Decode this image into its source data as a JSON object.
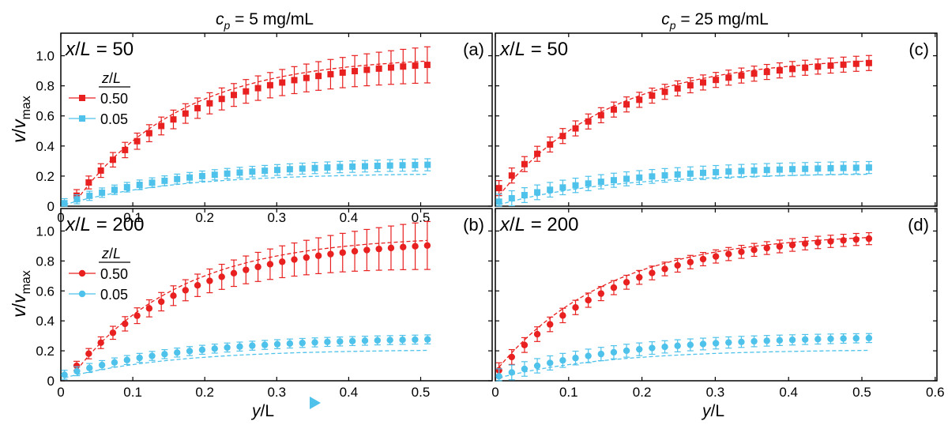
{
  "colors": {
    "red": "#e8201f",
    "blue": "#4ec2ea",
    "axis": "#000000"
  },
  "column_titles": [
    {
      "symbol": "c",
      "subscript": "p",
      "text": " = 5 mg/mL"
    },
    {
      "symbol": "c",
      "subscript": "p",
      "text": " = 25 mg/mL"
    }
  ],
  "y_axis_label": {
    "symbol": "v",
    "separator": "/",
    "symbol2": "v",
    "subscript": "max"
  },
  "x_axis_label": {
    "symbol": "y",
    "text": "/L"
  },
  "legend_title": "z/L",
  "chart_data": [
    {
      "panel": "(a)",
      "type": "scatter",
      "title": "x/L = 50",
      "marker": "square",
      "xlim": [
        0,
        0.6
      ],
      "ylim": [
        0,
        1.15
      ],
      "yticks": [
        0,
        0.2,
        0.4,
        0.6,
        0.8,
        1.0
      ],
      "yticklabels": [
        "0",
        "0.2",
        "0.4",
        "0.6",
        "0.8",
        "1.0"
      ],
      "xticks": [
        0,
        0.1,
        0.2,
        0.3,
        0.4,
        0.5
      ],
      "xticklabels": [
        "0",
        "0.1",
        "0.2",
        "0.3",
        "0.4",
        "0.5"
      ],
      "legend": [
        {
          "label": "0.50",
          "color": "red"
        },
        {
          "label": "0.05",
          "color": "blue"
        }
      ],
      "series": [
        {
          "name": "z/L = 0.50",
          "color": "red",
          "start": 0.022,
          "step": 0.0168,
          "count": 30,
          "ends": [
            0.07,
            0.99
          ],
          "err": [
            0.04,
            0.12
          ],
          "fit": [
            0.04,
            1.0
          ]
        },
        {
          "name": "z/L = 0.05",
          "color": "blue",
          "start": 0.005,
          "step": 0.0174,
          "count": 30,
          "ends": [
            0.02,
            0.29
          ],
          "err": [
            0.03,
            0.04
          ],
          "fit": [
            0.01,
            0.22
          ]
        }
      ]
    },
    {
      "panel": "(b)",
      "type": "scatter",
      "title": "x/L = 200",
      "marker": "circle",
      "xlim": [
        0,
        0.6
      ],
      "ylim": [
        0,
        1.15
      ],
      "yticks": [
        0,
        0.2,
        0.4,
        0.6,
        0.8,
        1.0
      ],
      "yticklabels": [
        "0",
        "0.2",
        "0.4",
        "0.6",
        "0.8",
        "1.0"
      ],
      "xticks": [
        0,
        0.1,
        0.2,
        0.3,
        0.4,
        0.5
      ],
      "xticklabels": [
        "0",
        "0.1",
        "0.2",
        "0.3",
        "0.4",
        "0.5"
      ],
      "legend": [
        {
          "label": "0.50",
          "color": "red"
        },
        {
          "label": "0.05",
          "color": "blue"
        }
      ],
      "series": [
        {
          "name": "z/L = 0.50",
          "color": "red",
          "start": 0.022,
          "step": 0.0168,
          "count": 30,
          "ends": [
            0.1,
            0.95
          ],
          "err": [
            0.03,
            0.16
          ],
          "fit": [
            0.07,
            0.97
          ]
        },
        {
          "name": "z/L = 0.05",
          "color": "blue",
          "start": 0.005,
          "step": 0.0174,
          "count": 30,
          "ends": [
            0.04,
            0.29
          ],
          "err": [
            0.03,
            0.03
          ],
          "fit": [
            0.02,
            0.21
          ]
        }
      ]
    },
    {
      "panel": "(c)",
      "type": "scatter",
      "title": "x/L = 50",
      "marker": "square",
      "xlim": [
        0,
        0.6
      ],
      "ylim": [
        0,
        1.15
      ],
      "yticks": [
        0,
        0.2,
        0.4,
        0.6,
        0.8,
        1.0
      ],
      "yticklabels": [],
      "xticks": [
        0,
        0.1,
        0.2,
        0.3,
        0.4,
        0.5,
        0.6
      ],
      "xticklabels": [],
      "legend": [],
      "series": [
        {
          "name": "z/L = 0.50",
          "color": "red",
          "start": 0.005,
          "step": 0.0174,
          "count": 30,
          "ends": [
            0.12,
            1.0
          ],
          "err": [
            0.05,
            0.05
          ],
          "fit": [
            0.07,
            1.0
          ]
        },
        {
          "name": "z/L = 0.05",
          "color": "blue",
          "start": 0.005,
          "step": 0.0174,
          "count": 30,
          "ends": [
            0.03,
            0.27
          ],
          "err": [
            0.05,
            0.04
          ],
          "fit": [
            0.01,
            0.22
          ]
        }
      ]
    },
    {
      "panel": "(d)",
      "type": "scatter",
      "title": "x/L = 200",
      "marker": "circle",
      "xlim": [
        0,
        0.6
      ],
      "ylim": [
        0,
        1.15
      ],
      "yticks": [
        0,
        0.2,
        0.4,
        0.6,
        0.8,
        1.0
      ],
      "yticklabels": [],
      "xticks": [
        0,
        0.1,
        0.2,
        0.3,
        0.4,
        0.5,
        0.6
      ],
      "xticklabels": [
        "0",
        "0.1",
        "0.2",
        "0.3",
        "0.4",
        "0.5",
        "0.6"
      ],
      "legend": [],
      "series": [
        {
          "name": "z/L = 0.50",
          "color": "red",
          "start": 0.005,
          "step": 0.0174,
          "count": 30,
          "ends": [
            0.07,
            1.0
          ],
          "err": [
            0.05,
            0.04
          ],
          "fit": [
            0.09,
            0.99
          ]
        },
        {
          "name": "z/L = 0.05",
          "color": "blue",
          "start": 0.005,
          "step": 0.0174,
          "count": 30,
          "ends": [
            0.03,
            0.3
          ],
          "err": [
            0.05,
            0.03
          ],
          "fit": [
            0.02,
            0.21
          ]
        }
      ]
    }
  ]
}
